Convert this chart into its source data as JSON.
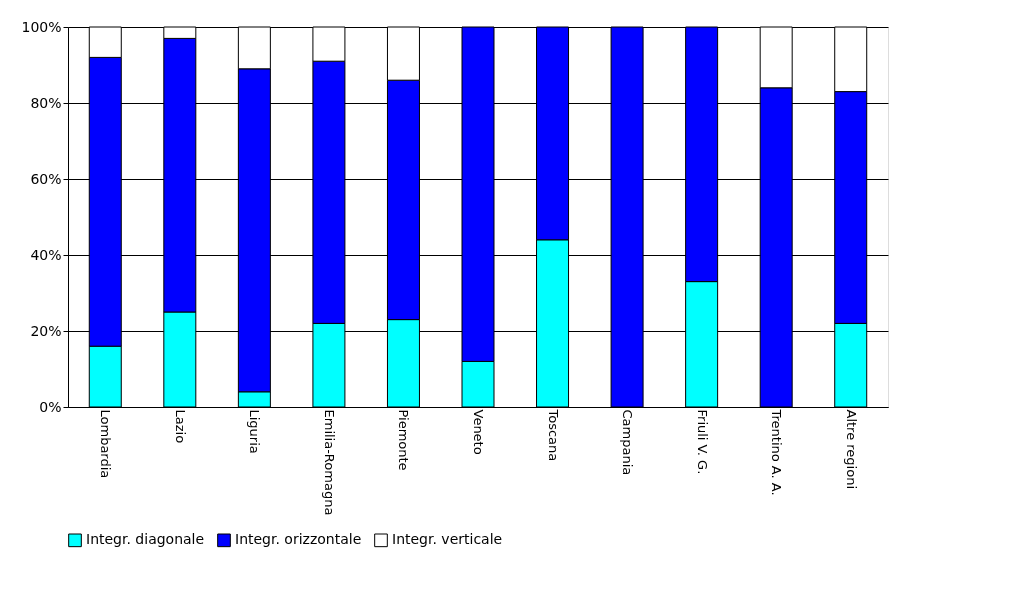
{
  "chart_data": {
    "type": "bar",
    "stacked": true,
    "categories": [
      "Lombardia",
      "Lazio",
      "Liguria",
      "Emilia-Romagna",
      "Piemonte",
      "Veneto",
      "Toscana",
      "Campania",
      "Friuli V. G.",
      "Trentino A. A.",
      "Altre regioni"
    ],
    "series": [
      {
        "name": "Integr. diagonale",
        "color": "#00ffff",
        "values": [
          16,
          25,
          4,
          22,
          23,
          12,
          44,
          0,
          33,
          0,
          22
        ]
      },
      {
        "name": "Integr. orizzontale",
        "color": "#0000ff",
        "values": [
          76,
          72,
          85,
          69,
          63,
          88,
          56,
          100,
          67,
          84,
          61
        ]
      },
      {
        "name": "Integr. verticale",
        "color": "#ffffff",
        "values": [
          8,
          3,
          11,
          9,
          14,
          0,
          0,
          0,
          0,
          16,
          17
        ]
      }
    ],
    "ylim": [
      0,
      100
    ],
    "yticks": [
      {
        "value": 0,
        "label": "0%"
      },
      {
        "value": 20,
        "label": "20%"
      },
      {
        "value": 40,
        "label": "40%"
      },
      {
        "value": 60,
        "label": "60%"
      },
      {
        "value": 80,
        "label": "80%"
      },
      {
        "value": 100,
        "label": "100%"
      }
    ],
    "grid": "y",
    "legend": "bottom"
  }
}
